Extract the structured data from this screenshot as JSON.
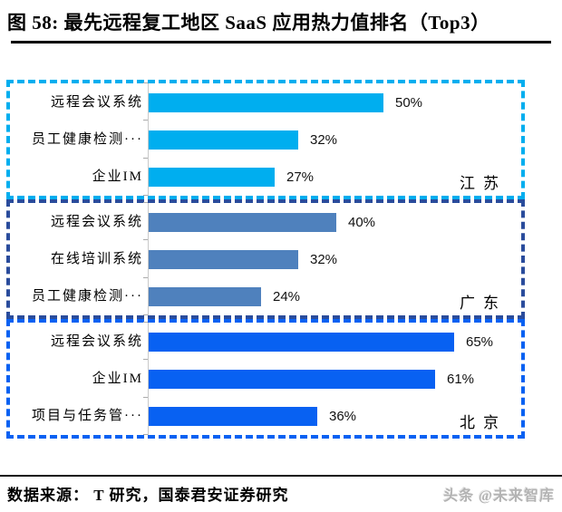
{
  "header": {
    "title": "图 58: 最先远程复工地区 SaaS 应用热力值排名（Top3）"
  },
  "chart_data": {
    "type": "bar",
    "orientation": "horizontal",
    "title": "图 58: 最先远程复工地区 SaaS 应用热力值排名（Top3）",
    "unit": "%",
    "xlim": [
      0,
      78
    ],
    "value_labels": "on",
    "grid": "off",
    "groups": [
      {
        "region": "江苏",
        "bar_color": "#00AEEF",
        "border_color": "#00AEEF",
        "categories": [
          "远程会议系统",
          "员工健康检测···",
          "企业IM"
        ],
        "values": [
          50,
          32,
          27
        ],
        "labels": [
          "50%",
          "32%",
          "27%"
        ]
      },
      {
        "region": "广东",
        "bar_color": "#4F81BD",
        "border_color": "#2A4C9C",
        "categories": [
          "远程会议系统",
          "在线培训系统",
          "员工健康检测···"
        ],
        "values": [
          40,
          32,
          24
        ],
        "labels": [
          "40%",
          "32%",
          "24%"
        ]
      },
      {
        "region": "北京",
        "bar_color": "#0861F2",
        "border_color": "#0861F2",
        "categories": [
          "远程会议系统",
          "企业IM",
          "项目与任务管···"
        ],
        "values": [
          65,
          61,
          36
        ],
        "labels": [
          "65%",
          "61%",
          "36%"
        ]
      }
    ]
  },
  "footer": {
    "source": "数据来源： T 研究，国泰君安证券研究",
    "watermark": "头条 @未来智库"
  },
  "colors": {
    "jiangsu_bar": "#00AEEF",
    "guangdong_bar": "#4F81BD",
    "beijing_bar": "#0861F2",
    "guangdong_border": "#2A4C9C",
    "axis": "#C9C9C9",
    "text": "#000000",
    "watermark": "#B3B3B3"
  }
}
